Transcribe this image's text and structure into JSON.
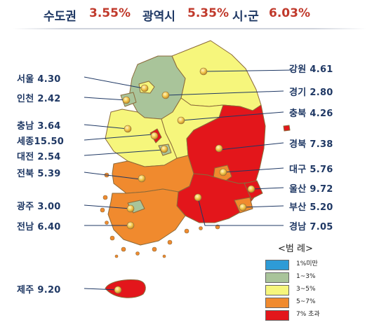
{
  "header": {
    "capital_label": "수도권",
    "capital_value": "3.55%",
    "metro_label": "광역시",
    "metro_value": "5.35%",
    "city_label": "시·군",
    "city_value": "6.03%"
  },
  "colors": {
    "header_label": "#1f3864",
    "header_value": "#c0392b",
    "label_text": "#1f3864",
    "under_1": "#2e9bd6",
    "range_1_3": "#a9c49a",
    "range_3_5": "#f6f67c",
    "range_5_7": "#f08a2e",
    "over_7": "#e3161b",
    "leader_line": "#1f3864"
  },
  "regions": [
    {
      "name": "서울",
      "value": "4.30",
      "color": "#f6f67c"
    },
    {
      "name": "인천",
      "value": "2.42",
      "color": "#a9c49a"
    },
    {
      "name": "충남",
      "value": "3.64",
      "color": "#f6f67c"
    },
    {
      "name": "세종",
      "value": "15.50",
      "color": "#e3161b"
    },
    {
      "name": "대전",
      "value": "2.54",
      "color": "#a9c49a"
    },
    {
      "name": "전북",
      "value": "5.39",
      "color": "#f08a2e"
    },
    {
      "name": "광주",
      "value": "3.00",
      "color": "#a9c49a"
    },
    {
      "name": "전남",
      "value": "6.40",
      "color": "#f08a2e"
    },
    {
      "name": "제주",
      "value": "9.20",
      "color": "#e3161b"
    },
    {
      "name": "강원",
      "value": "4.61",
      "color": "#f6f67c"
    },
    {
      "name": "경기",
      "value": "2.80",
      "color": "#a9c49a"
    },
    {
      "name": "충북",
      "value": "4.26",
      "color": "#f6f67c"
    },
    {
      "name": "경북",
      "value": "7.38",
      "color": "#e3161b"
    },
    {
      "name": "대구",
      "value": "5.76",
      "color": "#f08a2e"
    },
    {
      "name": "울산",
      "value": "9.72",
      "color": "#e3161b"
    },
    {
      "name": "부산",
      "value": "5.20",
      "color": "#f08a2e"
    },
    {
      "name": "경남",
      "value": "7.05",
      "color": "#e3161b"
    }
  ],
  "legend": {
    "title": "<범 례>",
    "items": [
      {
        "label": "1%미만",
        "color": "#2e9bd6"
      },
      {
        "label": "1~3%",
        "color": "#a9c49a"
      },
      {
        "label": "3~5%",
        "color": "#f6f67c"
      },
      {
        "label": "5~7%",
        "color": "#f08a2e"
      },
      {
        "label": "7% 초과",
        "color": "#e3161b"
      }
    ]
  }
}
